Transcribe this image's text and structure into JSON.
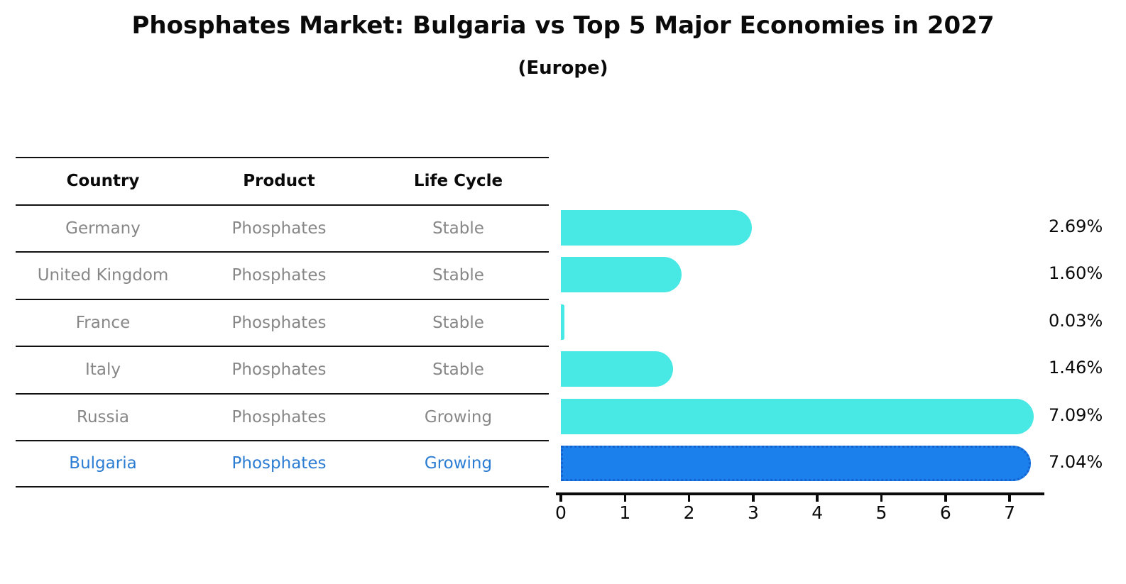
{
  "title": "Phosphates Market: Bulgaria vs Top 5 Major Economies in 2027",
  "subtitle": "(Europe)",
  "colors": {
    "bar_default": "#48e8e4",
    "bar_highlight": "#1b80ec",
    "bar_highlight_border": "#1563cf",
    "row_text": "#878787",
    "highlight_text": "#2b7cd3",
    "axis": "#0a0a0a"
  },
  "table": {
    "headers": [
      "Country",
      "Product",
      "Life Cycle"
    ],
    "rows": [
      {
        "country": "Germany",
        "product": "Phosphates",
        "life_cycle": "Stable",
        "highlight": false
      },
      {
        "country": "United Kingdom",
        "product": "Phosphates",
        "life_cycle": "Stable",
        "highlight": false
      },
      {
        "country": "France",
        "product": "Phosphates",
        "life_cycle": "Stable",
        "highlight": false
      },
      {
        "country": "Italy",
        "product": "Phosphates",
        "life_cycle": "Stable",
        "highlight": false
      },
      {
        "country": "Russia",
        "product": "Phosphates",
        "life_cycle": "Growing",
        "highlight": false
      },
      {
        "country": "Bulgaria",
        "product": "Phosphates",
        "life_cycle": "Growing",
        "highlight": true
      }
    ]
  },
  "chart_data": {
    "type": "bar",
    "orientation": "horizontal",
    "title": "Phosphates Market: Bulgaria vs Top 5 Major Economies in 2027 (Europe)",
    "categories": [
      "Germany",
      "United Kingdom",
      "France",
      "Italy",
      "Russia",
      "Bulgaria"
    ],
    "values": [
      2.69,
      1.6,
      0.03,
      1.46,
      7.09,
      7.04
    ],
    "value_labels": [
      "2.69%",
      "1.60%",
      "0.03%",
      "1.46%",
      "7.09%",
      "7.04%"
    ],
    "highlight_index": 5,
    "xlabel": "",
    "ylabel": "",
    "xlim": [
      0,
      7.5
    ],
    "xticks": [
      0,
      1,
      2,
      3,
      4,
      5,
      6,
      7
    ],
    "grid": false,
    "legend": false
  }
}
